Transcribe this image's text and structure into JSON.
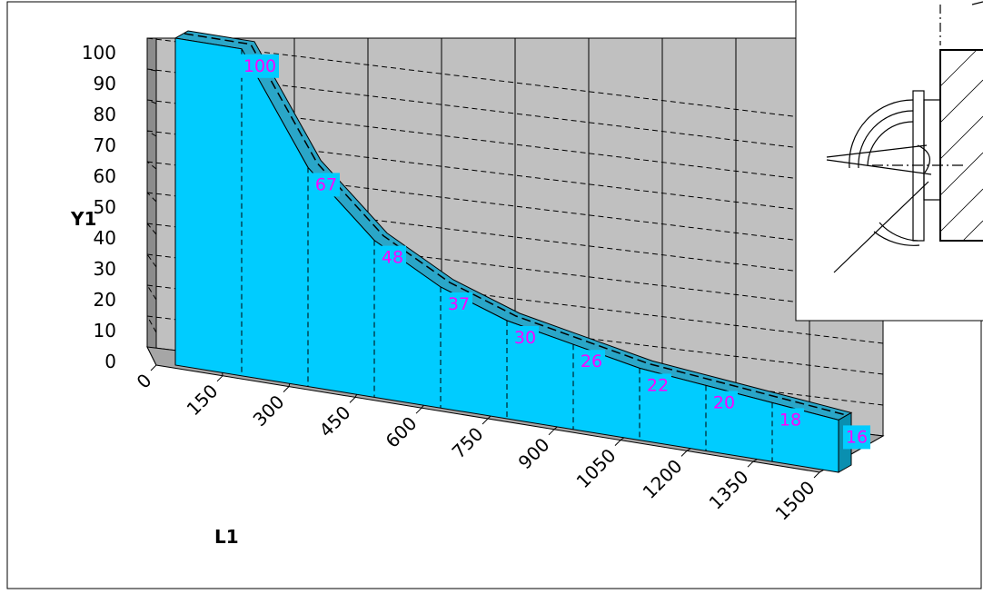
{
  "chart_data": {
    "type": "area",
    "xlabel": "L1",
    "ylabel": "Y1",
    "x_tick_labels": [
      "0",
      "150",
      "300",
      "450",
      "600",
      "750",
      "900",
      "1050",
      "1200",
      "1350",
      "1500"
    ],
    "y_tick_labels": [
      "0",
      "10",
      "20",
      "30",
      "40",
      "50",
      "60",
      "70",
      "80",
      "90",
      "100"
    ],
    "ylim": [
      0,
      100
    ],
    "grid": true,
    "series": [
      {
        "points": [
          {
            "x": 150,
            "y": 100
          },
          {
            "x": 300,
            "y": 67
          },
          {
            "x": 450,
            "y": 48
          },
          {
            "x": 600,
            "y": 37
          },
          {
            "x": 750,
            "y": 30
          },
          {
            "x": 900,
            "y": 26
          },
          {
            "x": 1050,
            "y": 22
          },
          {
            "x": 1200,
            "y": 20
          },
          {
            "x": 1350,
            "y": 18
          },
          {
            "x": 1500,
            "y": 16
          }
        ],
        "data_labels": [
          "100",
          "67",
          "48",
          "37",
          "30",
          "26",
          "22",
          "20",
          "18",
          "16"
        ]
      }
    ],
    "colors": {
      "area": "#00ccff",
      "top_face": "#2aa6c8",
      "wall": "#c0c0c0",
      "side_wall": "#8c8c8c",
      "floor": "#a6a6a6",
      "data_label_text": "#ff00ff",
      "data_label_bg": "#00ccff"
    }
  },
  "inset_image": {
    "icon": "mechanical-part-cross-section-drawing"
  }
}
